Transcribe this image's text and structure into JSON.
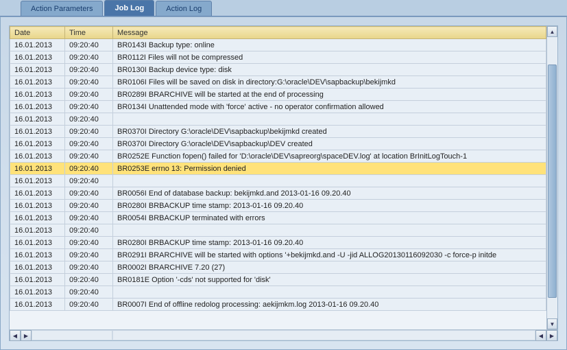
{
  "tabs": [
    {
      "label": "Action Parameters",
      "active": false
    },
    {
      "label": "Job Log",
      "active": true
    },
    {
      "label": "Action Log",
      "active": false
    }
  ],
  "columns": {
    "date": "Date",
    "time": "Time",
    "message": "Message"
  },
  "rows": [
    {
      "date": "16.01.2013",
      "time": "09:20:40",
      "msg": "BR0143I Backup type: online",
      "hl": false
    },
    {
      "date": "16.01.2013",
      "time": "09:20:40",
      "msg": "BR0112I Files will not be compressed",
      "hl": false
    },
    {
      "date": "16.01.2013",
      "time": "09:20:40",
      "msg": "BR0130I Backup device type: disk",
      "hl": false
    },
    {
      "date": "16.01.2013",
      "time": "09:20:40",
      "msg": "BR0106I Files will be saved on disk in directory:G:\\oracle\\DEV\\sapbackup\\bekijmkd",
      "hl": false
    },
    {
      "date": "16.01.2013",
      "time": "09:20:40",
      "msg": "BR0289I BRARCHIVE will be started at the end of processing",
      "hl": false
    },
    {
      "date": "16.01.2013",
      "time": "09:20:40",
      "msg": "BR0134I Unattended mode with 'force' active - no operator confirmation allowed",
      "hl": false
    },
    {
      "date": "16.01.2013",
      "time": "09:20:40",
      "msg": "",
      "hl": false
    },
    {
      "date": "16.01.2013",
      "time": "09:20:40",
      "msg": "BR0370I Directory G:\\oracle\\DEV\\sapbackup\\bekijmkd created",
      "hl": false
    },
    {
      "date": "16.01.2013",
      "time": "09:20:40",
      "msg": "BR0370I Directory G:\\oracle\\DEV\\sapbackup\\DEV created",
      "hl": false
    },
    {
      "date": "16.01.2013",
      "time": "09:20:40",
      "msg": "BR0252E Function fopen() failed for 'D:\\oracle\\DEV\\sapreorg\\spaceDEV.log' at location BrInitLogTouch-1",
      "hl": false
    },
    {
      "date": "16.01.2013",
      "time": "09:20:40",
      "msg": "BR0253E errno 13: Permission denied",
      "hl": true
    },
    {
      "date": "16.01.2013",
      "time": "09:20:40",
      "msg": "",
      "hl": false
    },
    {
      "date": "16.01.2013",
      "time": "09:20:40",
      "msg": "BR0056I End of database backup: bekijmkd.and 2013-01-16 09.20.40",
      "hl": false
    },
    {
      "date": "16.01.2013",
      "time": "09:20:40",
      "msg": "BR0280I BRBACKUP time stamp: 2013-01-16 09.20.40",
      "hl": false
    },
    {
      "date": "16.01.2013",
      "time": "09:20:40",
      "msg": "BR0054I BRBACKUP terminated with errors",
      "hl": false
    },
    {
      "date": "16.01.2013",
      "time": "09:20:40",
      "msg": "",
      "hl": false
    },
    {
      "date": "16.01.2013",
      "time": "09:20:40",
      "msg": "BR0280I BRBACKUP time stamp: 2013-01-16 09.20.40",
      "hl": false
    },
    {
      "date": "16.01.2013",
      "time": "09:20:40",
      "msg": "BR0291I BRARCHIVE will be started with options '+bekijmkd.and -U -jid ALLOG20130116092030  -c force-p initde",
      "hl": false
    },
    {
      "date": "16.01.2013",
      "time": "09:20:40",
      "msg": "BR0002I BRARCHIVE 7.20 (27)",
      "hl": false
    },
    {
      "date": "16.01.2013",
      "time": "09:20:40",
      "msg": "BR0181E Option '-cds' not supported for 'disk'",
      "hl": false
    },
    {
      "date": "16.01.2013",
      "time": "09:20:40",
      "msg": "",
      "hl": false
    },
    {
      "date": "16.01.2013",
      "time": "09:20:40",
      "msg": "BR0007I End of offline redolog processing: aekijmkm.log 2013-01-16 09.20.40",
      "hl": false
    }
  ]
}
